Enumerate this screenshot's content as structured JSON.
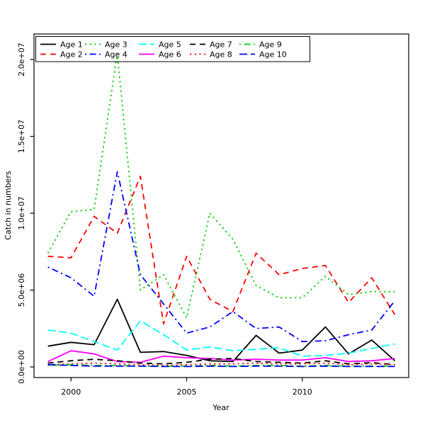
{
  "chart_data": {
    "type": "line",
    "title": "",
    "xlabel": "Year",
    "ylabel": "Catch in numbers",
    "grid": false,
    "legend_position": "top-left",
    "legend_box": true,
    "y_tick_labels_rotated": true,
    "x": [
      1999,
      2000,
      2001,
      2002,
      2003,
      2004,
      2005,
      2006,
      2007,
      2008,
      2009,
      2010,
      2011,
      2012,
      2013,
      2014
    ],
    "xlim": [
      1998.4,
      2014.6
    ],
    "ylim": [
      -690000,
      21660000
    ],
    "x_ticks": {
      "values": [
        2000,
        2005,
        2010
      ],
      "labels": [
        "2000",
        "2005",
        "2010"
      ]
    },
    "y_ticks": {
      "values": [
        0,
        5000000,
        10000000,
        15000000,
        20000000
      ],
      "labels": [
        "0.0e+00",
        "5.0e+06",
        "1.0e+07",
        "1.5e+07",
        "2.0e+07"
      ]
    },
    "series": [
      {
        "name": "Age 1",
        "color": "#000000",
        "linestyle": "solid",
        "values": [
          1350000,
          1600000,
          1450000,
          4400000,
          950000,
          1000000,
          750000,
          400000,
          350000,
          2050000,
          900000,
          1100000,
          2600000,
          850000,
          1750000,
          400000
        ]
      },
      {
        "name": "Age 2",
        "color": "#FF0000",
        "linestyle": "dashed",
        "values": [
          7200000,
          7100000,
          9800000,
          8700000,
          12400000,
          2800000,
          7200000,
          4400000,
          3600000,
          7400000,
          6000000,
          6400000,
          6600000,
          4200000,
          5800000,
          3400000
        ]
      },
      {
        "name": "Age 3",
        "color": "#00CD00",
        "linestyle": "dotted",
        "values": [
          7400000,
          10100000,
          10250000,
          20400000,
          5000000,
          6000000,
          3200000,
          10000000,
          8300000,
          5300000,
          4500000,
          4500000,
          5900000,
          4700000,
          4900000,
          4900000
        ]
      },
      {
        "name": "Age 4",
        "color": "#0000FF",
        "linestyle": "dotdash",
        "values": [
          6500000,
          5800000,
          4600000,
          12700000,
          6000000,
          4100000,
          2200000,
          2600000,
          3600000,
          2500000,
          2600000,
          1650000,
          1700000,
          2100000,
          2400000,
          4300000
        ]
      },
      {
        "name": "Age 5",
        "color": "#00FFFF",
        "linestyle": "longdash",
        "values": [
          2400000,
          2200000,
          1650000,
          1100000,
          3000000,
          2100000,
          1100000,
          1300000,
          1050000,
          1150000,
          1250000,
          700000,
          750000,
          900000,
          1200000,
          1500000
        ]
      },
      {
        "name": "Age 6",
        "color": "#FF00FF",
        "linestyle": "solid",
        "values": [
          350000,
          1050000,
          850000,
          350000,
          300000,
          700000,
          600000,
          550000,
          450000,
          500000,
          450000,
          450000,
          600000,
          350000,
          400000,
          550000
        ]
      },
      {
        "name": "Age 7",
        "color": "#000000",
        "linestyle": "dashed",
        "values": [
          250000,
          400000,
          500000,
          400000,
          250000,
          200000,
          300000,
          500000,
          550000,
          350000,
          300000,
          250000,
          400000,
          200000,
          280000,
          150000
        ]
      },
      {
        "name": "Age 8",
        "color": "#FF0000",
        "linestyle": "dotted",
        "values": [
          150000,
          200000,
          250000,
          200000,
          150000,
          100000,
          150000,
          200000,
          200000,
          250000,
          200000,
          200000,
          250000,
          150000,
          200000,
          150000
        ]
      },
      {
        "name": "Age 9",
        "color": "#00CD00",
        "linestyle": "dotdash",
        "values": [
          100000,
          150000,
          100000,
          100000,
          50000,
          50000,
          50000,
          100000,
          50000,
          100000,
          100000,
          50000,
          100000,
          50000,
          50000,
          50000
        ]
      },
      {
        "name": "Age 10",
        "color": "#0000FF",
        "linestyle": "longdash",
        "values": [
          150000,
          100000,
          50000,
          50000,
          50000,
          30000,
          30000,
          50000,
          30000,
          50000,
          50000,
          30000,
          50000,
          30000,
          30000,
          30000
        ]
      }
    ]
  }
}
